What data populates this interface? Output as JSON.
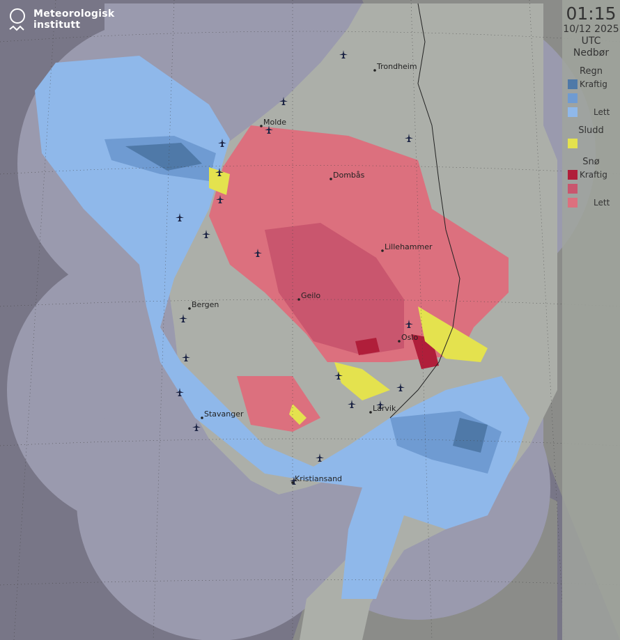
{
  "logo": {
    "line1": "Meteorologisk",
    "line2": "institutt"
  },
  "legend": {
    "time": "01:15",
    "date": "10/12 2025",
    "timezone": "UTC",
    "title": "Nedbør",
    "rain": {
      "label": "Regn",
      "items": [
        {
          "color": "#4f79a8",
          "label": "Kraftig"
        },
        {
          "color": "#6f9bd2",
          "label": ""
        },
        {
          "color": "#8fb8ea",
          "label": "Lett"
        }
      ]
    },
    "sleet": {
      "label": "Sludd",
      "items": [
        {
          "color": "#e4e24e",
          "label": ""
        }
      ]
    },
    "snow": {
      "label": "Snø",
      "items": [
        {
          "color": "#b01e3a",
          "label": "Kraftig"
        },
        {
          "color": "#c9566e",
          "label": ""
        },
        {
          "color": "#dc707e",
          "label": "Lett"
        }
      ]
    }
  },
  "cities": [
    {
      "name": "Trondheim"
    },
    {
      "name": "Molde"
    },
    {
      "name": "Dombås"
    },
    {
      "name": "Lillehammer"
    },
    {
      "name": "Geilo"
    },
    {
      "name": "Bergen"
    },
    {
      "name": "Oslo"
    },
    {
      "name": "Larvik"
    },
    {
      "name": "Stavanger"
    },
    {
      "name": "Kristiansand"
    }
  ],
  "icons": {
    "airport": "airplane-icon",
    "logo": "met-logo-icon"
  }
}
